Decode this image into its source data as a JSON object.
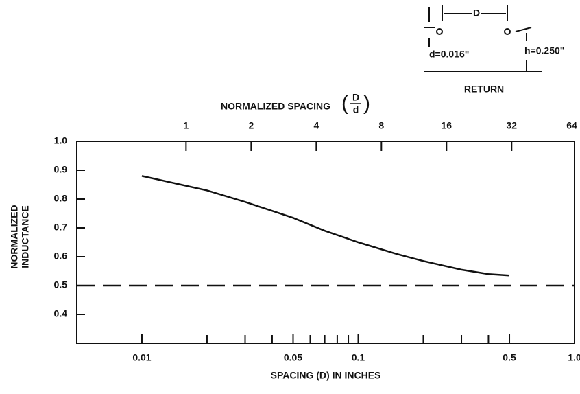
{
  "chart_data": {
    "type": "line",
    "x_label": "SPACING (D) IN INCHES",
    "y_label": [
      "NORMALIZED",
      "INDUCTANCE"
    ],
    "x2_label": "NORMALIZED SPACING",
    "x2_label_fraction": {
      "numerator": "D",
      "denominator": "d"
    },
    "x_scale": "log",
    "xlim": [
      0.005,
      1.0
    ],
    "xticks": [
      0.01,
      0.05,
      0.1,
      0.5,
      {
        "value": 1.0,
        "label": "1.0"
      }
    ],
    "xminor": [
      0.02,
      0.03,
      0.04,
      0.06,
      0.07,
      0.08,
      0.09,
      0.2,
      0.3,
      0.4
    ],
    "x2lim": [
      0.3125,
      62.5
    ],
    "x2ticks": [
      1,
      2,
      4,
      8,
      16,
      32,
      64
    ],
    "ylim": [
      0.3,
      1.0
    ],
    "yticks": [
      0.4,
      0.5,
      0.6,
      0.7,
      0.8,
      0.9,
      {
        "value": 1.0,
        "label": "1.0"
      }
    ],
    "reference_line": 0.5,
    "series": [
      {
        "color": "#111111",
        "x": [
          0.01,
          0.02,
          0.03,
          0.05,
          0.07,
          0.1,
          0.15,
          0.2,
          0.3,
          0.4,
          0.5
        ],
        "values": [
          0.88,
          0.83,
          0.79,
          0.735,
          0.69,
          0.65,
          0.61,
          0.585,
          0.555,
          0.54,
          0.535
        ]
      }
    ],
    "inset": {
      "spacing": "D",
      "wire_diameter": "d=0.016\"",
      "height": "h=0.250\"",
      "plane": "RETURN"
    }
  }
}
